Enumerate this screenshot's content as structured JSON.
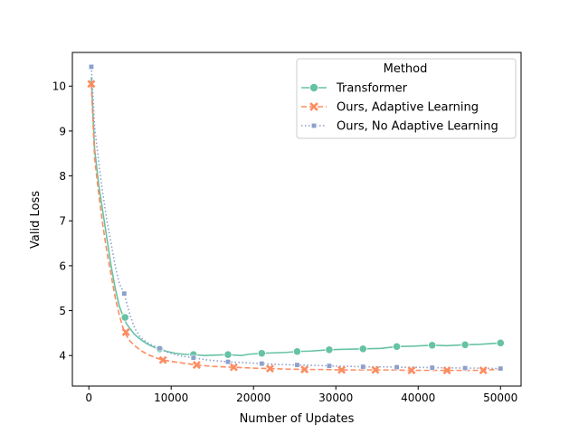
{
  "chart_data": {
    "type": "line",
    "xlabel": "Number of Updates",
    "ylabel": "Valid Loss",
    "xlim": [
      -2000,
      52500
    ],
    "ylim": [
      3.32,
      10.75
    ],
    "xticks": [
      0,
      10000,
      20000,
      30000,
      40000,
      50000
    ],
    "xtick_labels": [
      "0",
      "10000",
      "20000",
      "30000",
      "40000",
      "50000"
    ],
    "yticks": [
      4,
      5,
      6,
      7,
      8,
      9,
      10
    ],
    "ytick_labels": [
      "4",
      "5",
      "6",
      "7",
      "8",
      "9",
      "10"
    ],
    "grid": false,
    "legend": {
      "title": "Method",
      "placement": "upper right"
    },
    "series": [
      {
        "name": "Transformer",
        "color": "#66c2a5",
        "linestyle": "solid",
        "marker": "circle",
        "x": [
          300,
          700,
          1200,
          1700,
          2200,
          2700,
          3200,
          3700,
          4200,
          4600,
          5000,
          5500,
          6000,
          6500,
          7000,
          7500,
          8000,
          8600,
          9500,
          10500,
          11500,
          12700,
          14000,
          15500,
          16900,
          18500,
          19500,
          21000,
          22500,
          24000,
          25300,
          27000,
          29200,
          31000,
          33300,
          35500,
          37400,
          39500,
          41700,
          43500,
          45700,
          47500,
          50000
        ],
        "y": [
          10.2,
          8.6,
          7.8,
          7.2,
          6.6,
          6.0,
          5.5,
          5.1,
          4.85,
          4.7,
          4.6,
          4.48,
          4.4,
          4.33,
          4.27,
          4.22,
          4.18,
          4.14,
          4.09,
          4.05,
          4.03,
          4.02,
          4.0,
          4.01,
          4.02,
          4.0,
          4.03,
          4.05,
          4.06,
          4.07,
          4.09,
          4.1,
          4.13,
          4.14,
          4.15,
          4.16,
          4.2,
          4.21,
          4.23,
          4.22,
          4.24,
          4.25,
          4.28
        ],
        "marker_x": [
          4400,
          8600,
          12700,
          16900,
          21000,
          25300,
          29200,
          33300,
          37400,
          41700,
          45700,
          50000
        ],
        "marker_y": [
          4.85,
          4.15,
          4.02,
          4.02,
          4.05,
          4.09,
          4.13,
          4.15,
          4.2,
          4.23,
          4.24,
          4.28
        ]
      },
      {
        "name": "Ours, Adaptive Learning",
        "color": "#fc8d62",
        "linestyle": "dashed",
        "marker": "x",
        "x": [
          300,
          700,
          1200,
          1700,
          2200,
          2700,
          3200,
          3700,
          4300,
          5000,
          5700,
          6400,
          7200,
          8000,
          9000,
          10000,
          11500,
          13100,
          15000,
          17600,
          20000,
          22000,
          24000,
          26200,
          28500,
          30700,
          32500,
          34800,
          37000,
          39200,
          41500,
          43500,
          45600,
          47900,
          50000
        ],
        "y": [
          10.05,
          8.4,
          7.6,
          6.9,
          6.3,
          5.8,
          5.3,
          4.9,
          4.52,
          4.32,
          4.2,
          4.1,
          4.02,
          3.96,
          3.9,
          3.87,
          3.83,
          3.79,
          3.76,
          3.74,
          3.72,
          3.71,
          3.7,
          3.69,
          3.69,
          3.68,
          3.68,
          3.68,
          3.68,
          3.67,
          3.67,
          3.67,
          3.67,
          3.67,
          3.7
        ],
        "marker_x": [
          300,
          4500,
          9000,
          13100,
          17600,
          22000,
          26200,
          30700,
          34800,
          39200,
          43500,
          47900
        ],
        "marker_y": [
          10.05,
          4.52,
          3.9,
          3.79,
          3.74,
          3.71,
          3.69,
          3.68,
          3.68,
          3.67,
          3.67,
          3.67
        ]
      },
      {
        "name": "Ours, No Adaptive Learning",
        "color": "#8da0cb",
        "linestyle": "dotted",
        "marker": "square",
        "x": [
          300,
          700,
          1200,
          1700,
          2200,
          2700,
          3200,
          3700,
          4300,
          5000,
          5600,
          6200,
          7000,
          7800,
          8600,
          9500,
          10500,
          11500,
          12700,
          14500,
          16900,
          19000,
          21000,
          23000,
          25300,
          27500,
          29200,
          31500,
          33300,
          35500,
          37400,
          39500,
          41700,
          43500,
          45700,
          47500,
          50000
        ],
        "y": [
          10.43,
          9.1,
          8.3,
          7.6,
          7.0,
          6.5,
          6.0,
          5.6,
          5.38,
          4.9,
          4.6,
          4.42,
          4.3,
          4.22,
          4.16,
          4.08,
          4.02,
          3.98,
          3.95,
          3.9,
          3.86,
          3.84,
          3.82,
          3.8,
          3.79,
          3.78,
          3.77,
          3.76,
          3.75,
          3.75,
          3.74,
          3.74,
          3.73,
          3.73,
          3.72,
          3.72,
          3.71
        ],
        "marker_x": [
          300,
          4300,
          8600,
          12700,
          16900,
          21000,
          25300,
          29200,
          33300,
          37400,
          41700,
          45700,
          50000
        ],
        "marker_y": [
          10.43,
          5.38,
          4.16,
          3.95,
          3.86,
          3.82,
          3.79,
          3.77,
          3.75,
          3.74,
          3.73,
          3.72,
          3.71
        ]
      }
    ]
  }
}
